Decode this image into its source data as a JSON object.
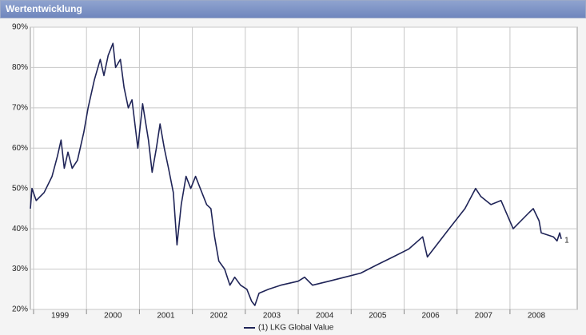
{
  "header": {
    "title": "Wertentwicklung"
  },
  "chart_data": {
    "type": "line",
    "xlim": [
      1998.94,
      2009.27
    ],
    "ylim": [
      20,
      90
    ],
    "xticks": [
      1999,
      2000,
      2001,
      2002,
      2003,
      2004,
      2005,
      2006,
      2007,
      2008
    ],
    "yticks": [
      {
        "value": 20,
        "label": "20%"
      },
      {
        "value": 30,
        "label": "30%"
      },
      {
        "value": 40,
        "label": "40%"
      },
      {
        "value": 50,
        "label": "50%"
      },
      {
        "value": 60,
        "label": "60%"
      },
      {
        "value": 70,
        "label": "70%"
      },
      {
        "value": 80,
        "label": "80%"
      },
      {
        "value": 90,
        "label": "90%"
      }
    ],
    "grid": true,
    "series": [
      {
        "name": "(1) LKG Global Value",
        "end_label": "1",
        "color": "#1f2457",
        "x": [
          1998.94,
          1998.97,
          1999.05,
          1999.2,
          1999.35,
          1999.45,
          1999.52,
          1999.58,
          1999.65,
          1999.73,
          1999.83,
          1999.95,
          2000.03,
          2000.15,
          2000.26,
          2000.33,
          2000.41,
          2000.5,
          2000.55,
          2000.64,
          2000.71,
          2000.79,
          2000.86,
          2000.97,
          2001.06,
          2001.17,
          2001.24,
          2001.32,
          2001.39,
          2001.47,
          2001.55,
          2001.64,
          2001.71,
          2001.79,
          2001.88,
          2001.97,
          2002.06,
          2002.15,
          2002.27,
          2002.35,
          2002.42,
          2002.5,
          2002.61,
          2002.71,
          2002.8,
          2002.91,
          2003.03,
          2003.12,
          2003.18,
          2003.26,
          2003.44,
          2003.67,
          2004.0,
          2004.12,
          2004.27,
          2004.58,
          2004.88,
          2005.18,
          2005.48,
          2005.79,
          2006.09,
          2006.35,
          2006.44,
          2006.85,
          2007.15,
          2007.35,
          2007.45,
          2007.64,
          2007.83,
          2008.06,
          2008.36,
          2008.44,
          2008.55,
          2008.59,
          2008.82,
          2008.89,
          2008.94,
          2008.97
        ],
        "values": [
          45,
          50,
          47,
          49,
          53,
          58,
          62,
          55,
          59,
          55,
          57,
          64,
          70,
          77,
          82,
          78,
          83,
          86,
          80,
          82,
          75,
          70,
          72,
          60,
          71,
          62,
          54,
          60,
          66,
          60,
          55,
          49,
          36,
          46,
          53,
          50,
          53,
          50,
          46,
          45,
          38,
          32,
          30,
          26,
          28,
          26,
          25,
          22,
          21,
          24,
          25,
          26,
          27,
          28,
          26,
          27,
          28,
          29,
          31,
          33,
          35,
          38,
          33,
          40,
          45,
          50,
          48,
          46,
          47,
          40,
          44,
          45,
          42,
          39,
          38,
          37,
          39,
          37.5
        ]
      }
    ]
  }
}
